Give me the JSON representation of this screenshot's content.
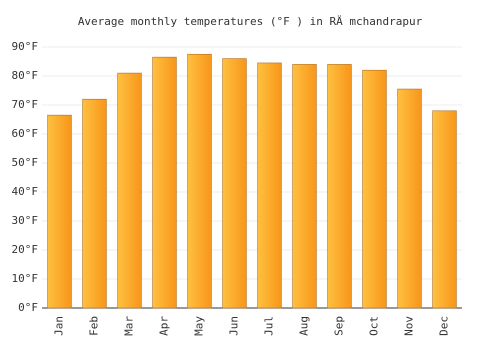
{
  "chart_data": {
    "type": "bar",
    "title": "Average monthly temperatures (°F ) in RÄ mchandrapur",
    "categories": [
      "Jan",
      "Feb",
      "Mar",
      "Apr",
      "May",
      "Jun",
      "Jul",
      "Aug",
      "Sep",
      "Oct",
      "Nov",
      "Dec"
    ],
    "values": [
      66.5,
      72,
      81,
      86.5,
      87.5,
      86,
      84.5,
      84,
      84,
      82,
      75.5,
      68
    ],
    "color": "#ffa928",
    "ylim": [
      0,
      90
    ],
    "yticks": [
      {
        "value": 0,
        "label": "0°F"
      },
      {
        "value": 10,
        "label": "10°F"
      },
      {
        "value": 20,
        "label": "20°F"
      },
      {
        "value": 30,
        "label": "30°F"
      },
      {
        "value": 40,
        "label": "40°F"
      },
      {
        "value": 50,
        "label": "50°F"
      },
      {
        "value": 60,
        "label": "60°F"
      },
      {
        "value": 70,
        "label": "70°F"
      },
      {
        "value": 80,
        "label": "80°F"
      },
      {
        "value": 90,
        "label": "90°F"
      }
    ],
    "grid": true
  }
}
